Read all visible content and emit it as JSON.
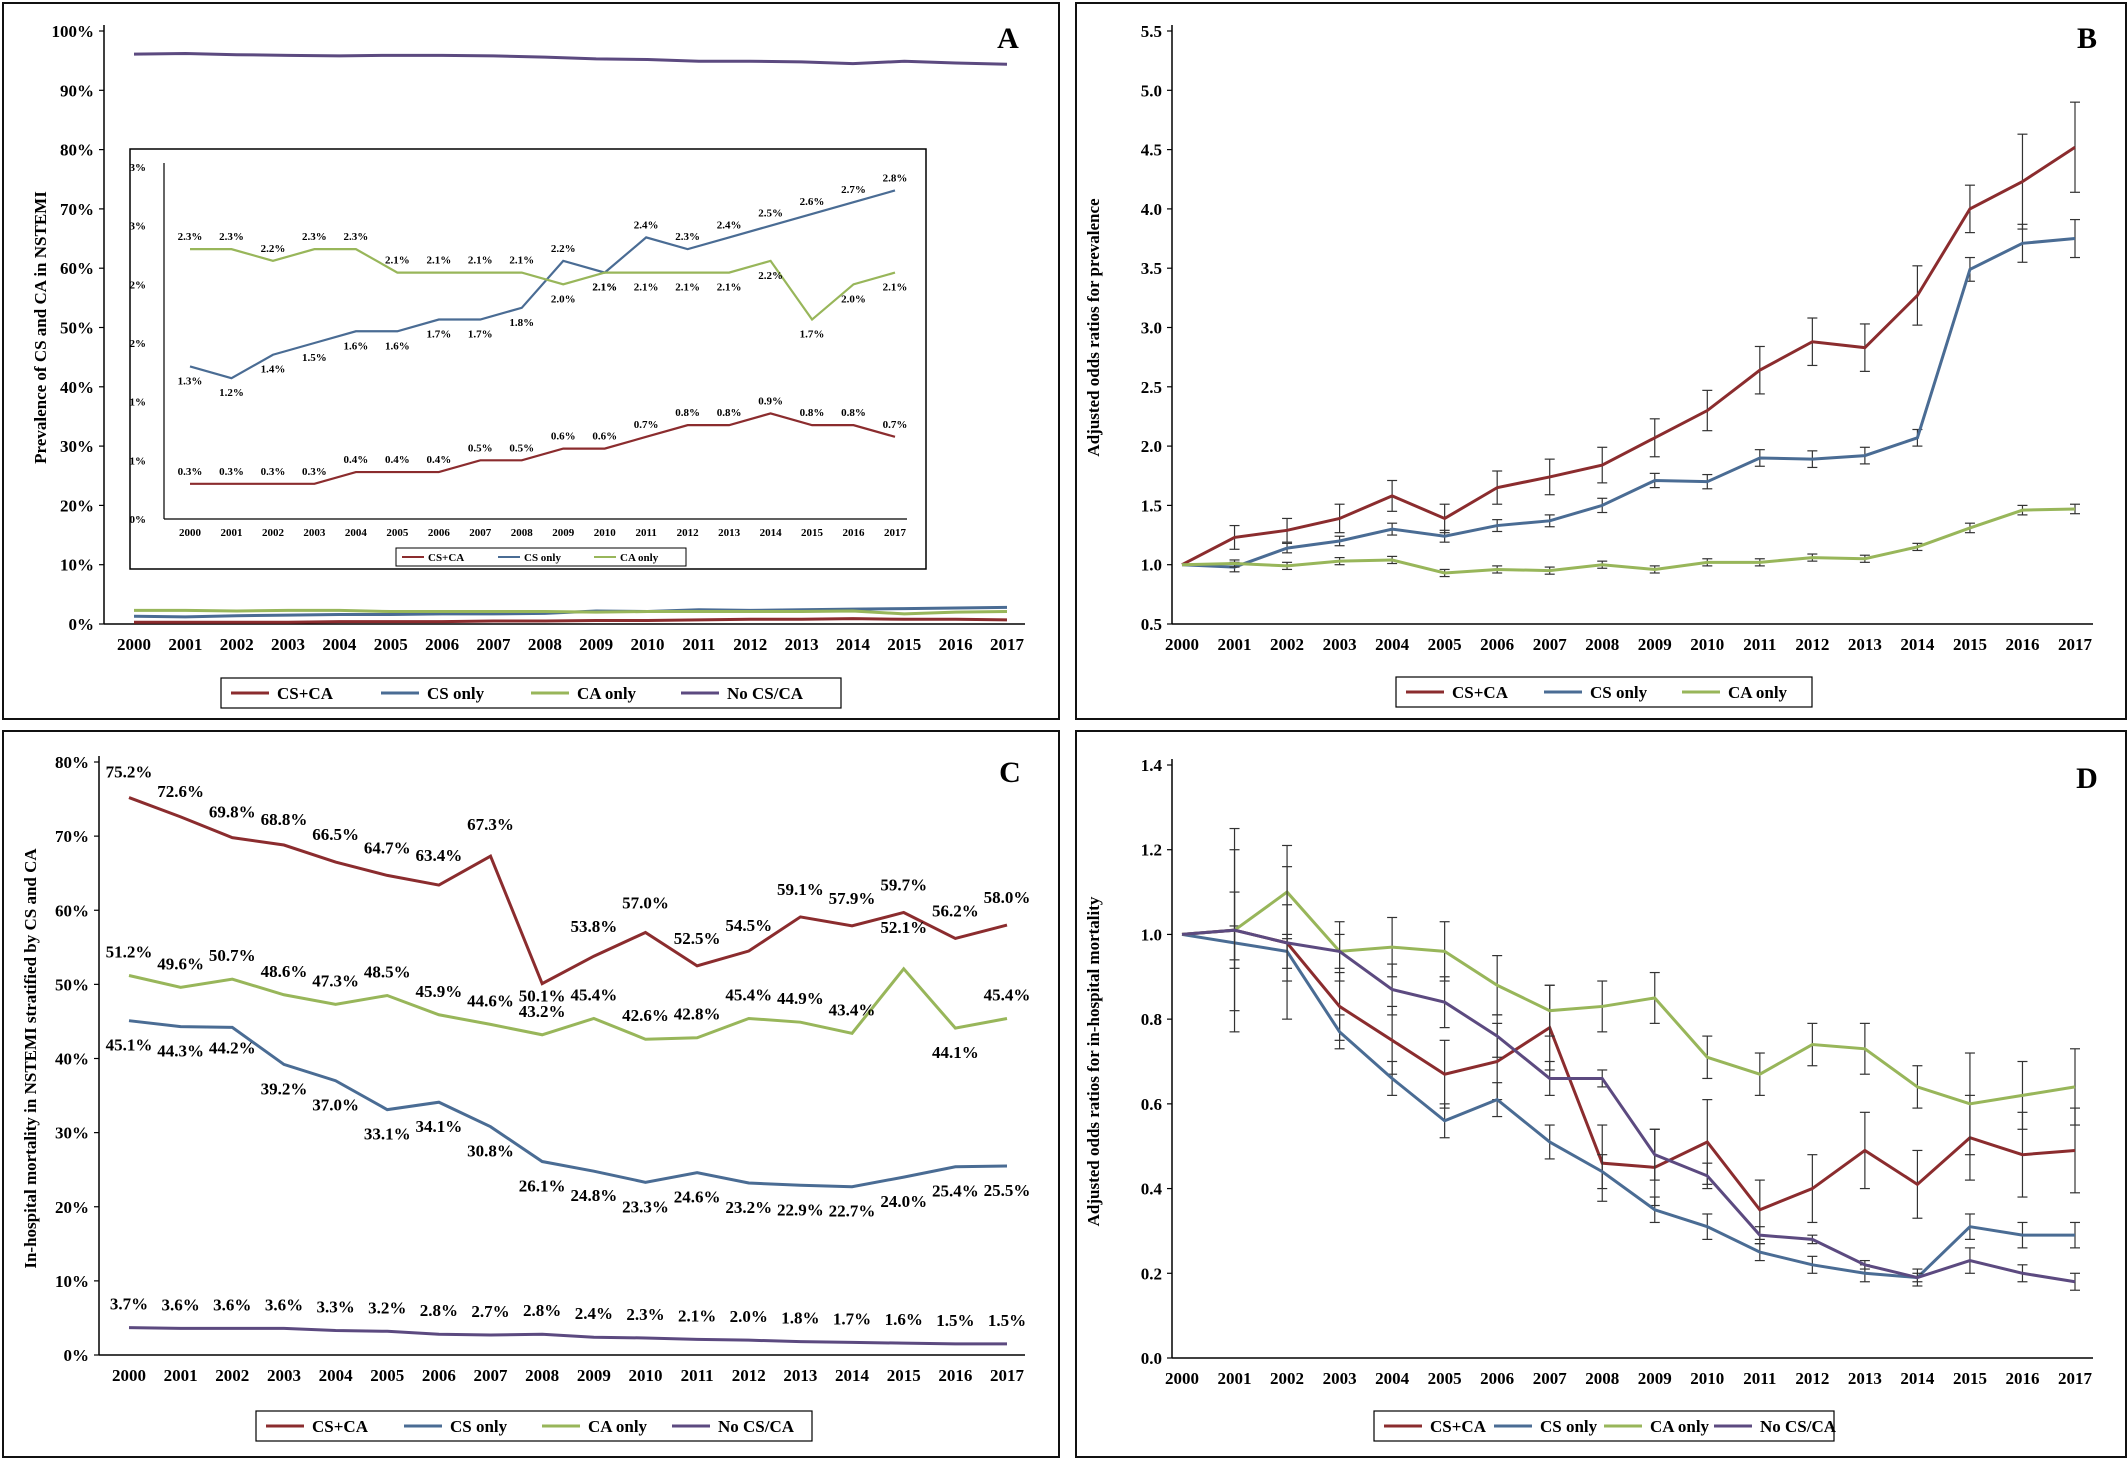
{
  "colors": {
    "cs_ca": "#8B2C2E",
    "cs_only": "#4A6C94",
    "ca_only": "#98B65A",
    "no_cs_ca": "#5C4A80"
  },
  "chart_data": [
    {
      "panel": "A",
      "type": "line",
      "ylabel": "Prevalence of CS and CA in NSTEMI",
      "ylim": [
        0,
        100
      ],
      "yticks": [
        "0%",
        "10%",
        "20%",
        "30%",
        "40%",
        "50%",
        "60%",
        "70%",
        "80%",
        "90%",
        "100%"
      ],
      "categories": [
        "2000",
        "2001",
        "2002",
        "2003",
        "2004",
        "2005",
        "2006",
        "2007",
        "2008",
        "2009",
        "2010",
        "2011",
        "2012",
        "2013",
        "2014",
        "2015",
        "2016",
        "2017"
      ],
      "legend": "bottom",
      "series": [
        {
          "name": "CS+CA",
          "color": "#8B2C2E",
          "values": [
            0.3,
            0.3,
            0.3,
            0.3,
            0.4,
            0.4,
            0.4,
            0.5,
            0.5,
            0.6,
            0.6,
            0.7,
            0.8,
            0.8,
            0.9,
            0.8,
            0.8,
            0.7
          ]
        },
        {
          "name": "CS only",
          "color": "#4A6C94",
          "values": [
            1.3,
            1.2,
            1.4,
            1.5,
            1.6,
            1.6,
            1.7,
            1.7,
            1.8,
            2.2,
            2.1,
            2.4,
            2.3,
            2.4,
            2.5,
            2.6,
            2.7,
            2.8
          ]
        },
        {
          "name": "CA only",
          "color": "#98B65A",
          "values": [
            2.3,
            2.3,
            2.2,
            2.3,
            2.3,
            2.1,
            2.1,
            2.1,
            2.1,
            2.0,
            2.1,
            2.1,
            2.1,
            2.1,
            2.2,
            1.7,
            2.0,
            2.1
          ]
        },
        {
          "name": "No CS/CA",
          "color": "#5C4A80",
          "values": [
            96.1,
            96.2,
            96.0,
            95.9,
            95.8,
            95.9,
            95.9,
            95.8,
            95.6,
            95.3,
            95.2,
            94.9,
            94.9,
            94.8,
            94.5,
            94.9,
            94.6,
            94.4
          ]
        }
      ],
      "inset": {
        "yticks": [
          "0%",
          "1%",
          "1%",
          "2%",
          "2%",
          "3%",
          "3%"
        ],
        "ylim": [
          0,
          3
        ],
        "legend": "bottom",
        "series": [
          {
            "name": "CS+CA",
            "color": "#8B2C2E",
            "values": [
              0.3,
              0.3,
              0.3,
              0.3,
              0.4,
              0.4,
              0.4,
              0.5,
              0.5,
              0.6,
              0.6,
              0.7,
              0.8,
              0.8,
              0.9,
              0.8,
              0.8,
              0.7
            ],
            "labels": [
              "0.3%",
              "0.3%",
              "0.3%",
              "0.3%",
              "0.4%",
              "0.4%",
              "0.4%",
              "0.5%",
              "0.5%",
              "0.6%",
              "0.6%",
              "0.7%",
              "0.8%",
              "0.8%",
              "0.9%",
              "0.8%",
              "0.8%",
              "0.7%"
            ]
          },
          {
            "name": "CS only",
            "color": "#4A6C94",
            "values": [
              1.3,
              1.2,
              1.4,
              1.5,
              1.6,
              1.6,
              1.7,
              1.7,
              1.8,
              2.2,
              2.1,
              2.4,
              2.3,
              2.4,
              2.5,
              2.6,
              2.7,
              2.8
            ],
            "labels": [
              "1.3%",
              "1.2%",
              "1.4%",
              "1.5%",
              "1.6%",
              "1.6%",
              "1.7%",
              "1.7%",
              "1.8%",
              "2.2%",
              "2.1%",
              "2.4%",
              "2.3%",
              "2.4%",
              "2.5%",
              "2.6%",
              "2.7%",
              "2.8%"
            ]
          },
          {
            "name": "CA only",
            "color": "#98B65A",
            "values": [
              2.3,
              2.3,
              2.2,
              2.3,
              2.3,
              2.1,
              2.1,
              2.1,
              2.1,
              2.0,
              2.1,
              2.1,
              2.1,
              2.1,
              2.2,
              1.7,
              2.0,
              2.1
            ],
            "labels": [
              "2.3%",
              "2.3%",
              "2.2%",
              "2.3%",
              "2.3%",
              "2.1%",
              "2.1%",
              "2.1%",
              "2.1%",
              "2.0%",
              "2.1%",
              "2.1%",
              "2.1%",
              "2.1%",
              "2.2%",
              "1.7%",
              "2.0%",
              "2.1%"
            ]
          }
        ]
      }
    },
    {
      "panel": "B",
      "type": "line",
      "ylabel": "Adjusted odds ratios for prevalence",
      "ylim": [
        0.5,
        5.5
      ],
      "yticks": [
        "0.5",
        "1.0",
        "1.5",
        "2.0",
        "2.5",
        "3.0",
        "3.5",
        "4.0",
        "4.5",
        "5.0",
        "5.5"
      ],
      "categories": [
        "2000",
        "2001",
        "2002",
        "2003",
        "2004",
        "2005",
        "2006",
        "2007",
        "2008",
        "2009",
        "2010",
        "2011",
        "2012",
        "2013",
        "2014",
        "2015",
        "2016",
        "2017"
      ],
      "legend": "bottom",
      "series": [
        {
          "name": "CS+CA",
          "color": "#8B2C2E",
          "values": [
            1.0,
            1.23,
            1.29,
            1.39,
            1.58,
            1.39,
            1.65,
            1.74,
            1.84,
            2.07,
            2.3,
            2.64,
            2.88,
            2.83,
            3.27,
            4.0,
            4.23,
            4.52
          ],
          "err": [
            0,
            0.1,
            0.1,
            0.12,
            0.13,
            0.12,
            0.14,
            0.15,
            0.15,
            0.16,
            0.17,
            0.2,
            0.2,
            0.2,
            0.25,
            0.2,
            0.4,
            0.38
          ]
        },
        {
          "name": "CS only",
          "color": "#4A6C94",
          "values": [
            1.0,
            0.98,
            1.14,
            1.2,
            1.3,
            1.24,
            1.33,
            1.37,
            1.5,
            1.71,
            1.7,
            1.9,
            1.89,
            1.92,
            2.07,
            3.49,
            3.71,
            3.75
          ],
          "err": [
            0,
            0.04,
            0.04,
            0.04,
            0.05,
            0.05,
            0.05,
            0.05,
            0.06,
            0.06,
            0.06,
            0.07,
            0.07,
            0.07,
            0.07,
            0.1,
            0.16,
            0.16
          ]
        },
        {
          "name": "CA only",
          "color": "#98B65A",
          "values": [
            1.0,
            1.01,
            0.99,
            1.03,
            1.04,
            0.93,
            0.96,
            0.95,
            1.0,
            0.96,
            1.02,
            1.02,
            1.06,
            1.05,
            1.15,
            1.31,
            1.46,
            1.47
          ],
          "err": [
            0,
            0.03,
            0.03,
            0.03,
            0.03,
            0.03,
            0.03,
            0.03,
            0.03,
            0.03,
            0.03,
            0.03,
            0.03,
            0.03,
            0.03,
            0.04,
            0.04,
            0.04
          ]
        }
      ]
    },
    {
      "panel": "C",
      "type": "line",
      "ylabel": "In-hospital mortality in NSTEMI stratified by CS and CA",
      "ylim": [
        0,
        80
      ],
      "yticks": [
        "0%",
        "10%",
        "20%",
        "30%",
        "40%",
        "50%",
        "60%",
        "70%",
        "80%"
      ],
      "categories": [
        "2000",
        "2001",
        "2002",
        "2003",
        "2004",
        "2005",
        "2006",
        "2007",
        "2008",
        "2009",
        "2010",
        "2011",
        "2012",
        "2013",
        "2014",
        "2015",
        "2016",
        "2017"
      ],
      "legend": "bottom",
      "series": [
        {
          "name": "CS+CA",
          "color": "#8B2C2E",
          "values": [
            75.2,
            72.6,
            69.8,
            68.8,
            66.5,
            64.7,
            63.4,
            67.3,
            50.1,
            53.8,
            57.0,
            52.5,
            54.5,
            59.1,
            57.9,
            59.7,
            56.2,
            58.0
          ],
          "labels": [
            "75.2%",
            "72.6%",
            "69.8%",
            "68.8%",
            "66.5%",
            "64.7%",
            "63.4%",
            "67.3%",
            "50.1%",
            "53.8%",
            "57.0%",
            "52.5%",
            "54.5%",
            "59.1%",
            "57.9%",
            "59.7%",
            "56.2%",
            "58.0%"
          ]
        },
        {
          "name": "CS only",
          "color": "#4A6C94",
          "values": [
            45.1,
            44.3,
            44.2,
            39.2,
            37.0,
            33.1,
            34.1,
            30.8,
            26.1,
            24.8,
            23.3,
            24.6,
            23.2,
            22.9,
            22.7,
            24.0,
            25.4,
            25.5
          ],
          "labels": [
            "45.1%",
            "44.3%",
            "44.2%",
            "39.2%",
            "37.0%",
            "33.1%",
            "34.1%",
            "30.8%",
            "26.1%",
            "24.8%",
            "23.3%",
            "24.6%",
            "23.2%",
            "22.9%",
            "22.7%",
            "24.0%",
            "25.4%",
            "25.5%"
          ]
        },
        {
          "name": "CA only",
          "color": "#98B65A",
          "values": [
            51.2,
            49.6,
            50.7,
            48.6,
            47.3,
            48.5,
            45.9,
            44.6,
            43.2,
            45.4,
            42.6,
            42.8,
            45.4,
            44.9,
            43.4,
            52.1,
            44.1,
            45.4
          ],
          "labels": [
            "51.2%",
            "49.6%",
            "50.7%",
            "48.6%",
            "47.3%",
            "48.5%",
            "45.9%",
            "44.6%",
            "43.2%",
            "45.4%",
            "42.6%",
            "42.8%",
            "45.4%",
            "44.9%",
            "43.4%",
            "52.1%",
            "44.1%",
            "45.4%"
          ]
        },
        {
          "name": "No CS/CA",
          "color": "#5C4A80",
          "values": [
            3.7,
            3.6,
            3.6,
            3.6,
            3.3,
            3.2,
            2.8,
            2.7,
            2.8,
            2.4,
            2.3,
            2.1,
            2.0,
            1.8,
            1.7,
            1.6,
            1.5,
            1.5
          ],
          "labels": [
            "3.7%",
            "3.6%",
            "3.6%",
            "3.6%",
            "3.3%",
            "3.2%",
            "2.8%",
            "2.7%",
            "2.8%",
            "2.4%",
            "2.3%",
            "2.1%",
            "2.0%",
            "1.8%",
            "1.7%",
            "1.6%",
            "1.5%",
            "1.5%"
          ]
        }
      ]
    },
    {
      "panel": "D",
      "type": "line",
      "ylabel": "Adjusted odds ratios for in-hospital mortality",
      "ylim": [
        0,
        1.4
      ],
      "yticks": [
        "0.0",
        "0.2",
        "0.4",
        "0.6",
        "0.8",
        "1.0",
        "1.2",
        "1.4"
      ],
      "categories": [
        "2000",
        "2001",
        "2002",
        "2003",
        "2004",
        "2005",
        "2006",
        "2007",
        "2008",
        "2009",
        "2010",
        "2011",
        "2012",
        "2013",
        "2014",
        "2015",
        "2016",
        "2017"
      ],
      "legend": "bottom",
      "series": [
        {
          "name": "CS+CA",
          "color": "#8B2C2E",
          "values": [
            1.0,
            1.01,
            0.98,
            0.83,
            0.75,
            0.67,
            0.7,
            0.78,
            0.46,
            0.45,
            0.51,
            0.35,
            0.4,
            0.49,
            0.41,
            0.52,
            0.48,
            0.49
          ],
          "err": [
            0,
            0.09,
            0.09,
            0.08,
            0.08,
            0.08,
            0.09,
            0.1,
            0.09,
            0.09,
            0.1,
            0.07,
            0.08,
            0.09,
            0.08,
            0.1,
            0.1,
            0.1
          ]
        },
        {
          "name": "CS only",
          "color": "#4A6C94",
          "values": [
            1.0,
            0.98,
            0.96,
            0.77,
            0.66,
            0.56,
            0.61,
            0.51,
            0.44,
            0.35,
            0.31,
            0.25,
            0.22,
            0.2,
            0.19,
            0.31,
            0.29,
            0.29
          ],
          "err": [
            0,
            0.04,
            0.04,
            0.04,
            0.04,
            0.04,
            0.04,
            0.04,
            0.04,
            0.03,
            0.03,
            0.02,
            0.02,
            0.02,
            0.02,
            0.03,
            0.03,
            0.03
          ]
        },
        {
          "name": "CA only",
          "color": "#98B65A",
          "values": [
            1.0,
            1.01,
            1.1,
            0.96,
            0.97,
            0.96,
            0.88,
            0.82,
            0.83,
            0.85,
            0.71,
            0.67,
            0.74,
            0.73,
            0.64,
            0.6,
            0.62,
            0.64
          ],
          "err": [
            0,
            0.24,
            0.11,
            0.07,
            0.07,
            0.07,
            0.07,
            0.06,
            0.06,
            0.06,
            0.05,
            0.05,
            0.05,
            0.06,
            0.05,
            0.12,
            0.08,
            0.09
          ]
        },
        {
          "name": "No CS/CA",
          "color": "#5C4A80",
          "values": [
            1.0,
            1.01,
            0.98,
            0.96,
            0.87,
            0.84,
            0.76,
            0.66,
            0.66,
            0.48,
            0.43,
            0.29,
            0.28,
            0.22,
            0.19,
            0.23,
            0.2,
            0.18
          ],
          "err": [
            0,
            0.19,
            0.18,
            0.04,
            0.06,
            0.06,
            0.05,
            0.04,
            0.02,
            0.06,
            0.03,
            0.02,
            0.01,
            0.01,
            0.01,
            0.03,
            0.02,
            0.02
          ]
        }
      ]
    }
  ]
}
